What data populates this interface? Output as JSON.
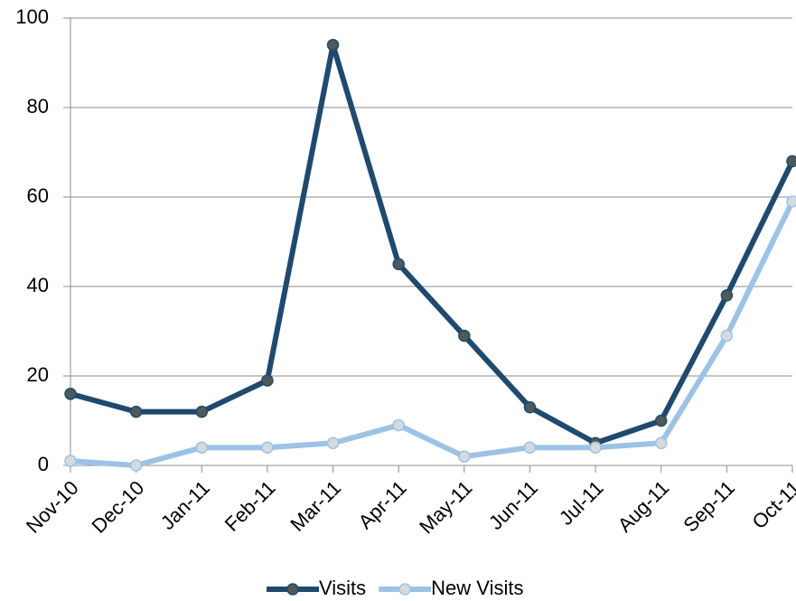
{
  "chart_data": {
    "type": "line",
    "categories": [
      "Nov-10",
      "Dec-10",
      "Jan-11",
      "Feb-11",
      "Mar-11",
      "Apr-11",
      "May-11",
      "Jun-11",
      "Jul-11",
      "Aug-11",
      "Sep-11",
      "Oct-11"
    ],
    "series": [
      {
        "name": "Visits",
        "color": "#1f4a6e",
        "marker_color": "#4f5a58",
        "values": [
          16,
          12,
          12,
          19,
          94,
          45,
          29,
          13,
          5,
          10,
          38,
          68
        ]
      },
      {
        "name": "New Visits",
        "color": "#9cc3e5",
        "marker_color": "#d6dadc",
        "values": [
          1,
          0,
          4,
          4,
          5,
          9,
          2,
          4,
          4,
          5,
          29,
          59
        ]
      }
    ],
    "ylim": [
      0,
      100
    ],
    "yticks": [
      0,
      20,
      40,
      60,
      80,
      100
    ],
    "grid": true,
    "legend": "bottom"
  }
}
